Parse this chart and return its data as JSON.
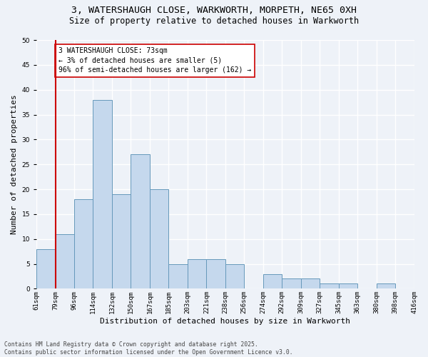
{
  "title_line1": "3, WATERSHAUGH CLOSE, WARKWORTH, MORPETH, NE65 0XH",
  "title_line2": "Size of property relative to detached houses in Warkworth",
  "xlabel": "Distribution of detached houses by size in Warkworth",
  "ylabel": "Number of detached properties",
  "bar_values": [
    8,
    11,
    18,
    38,
    19,
    27,
    20,
    5,
    6,
    6,
    5,
    0,
    3,
    2,
    2,
    1,
    1,
    0,
    1,
    0
  ],
  "bin_labels": [
    "61sqm",
    "79sqm",
    "96sqm",
    "114sqm",
    "132sqm",
    "150sqm",
    "167sqm",
    "185sqm",
    "203sqm",
    "221sqm",
    "238sqm",
    "256sqm",
    "274sqm",
    "292sqm",
    "309sqm",
    "327sqm",
    "345sqm",
    "363sqm",
    "380sqm",
    "398sqm",
    "416sqm"
  ],
  "bar_color": "#c5d8ed",
  "bar_edge_color": "#6699bb",
  "vline_color": "#cc0000",
  "annotation_text": "3 WATERSHAUGH CLOSE: 73sqm\n← 3% of detached houses are smaller (5)\n96% of semi-detached houses are larger (162) →",
  "annotation_box_color": "white",
  "annotation_box_edge_color": "#cc0000",
  "ylim": [
    0,
    50
  ],
  "yticks": [
    0,
    5,
    10,
    15,
    20,
    25,
    30,
    35,
    40,
    45,
    50
  ],
  "footer_text": "Contains HM Land Registry data © Crown copyright and database right 2025.\nContains public sector information licensed under the Open Government Licence v3.0.",
  "bg_color": "#eef2f8",
  "grid_color": "#ffffff",
  "title_fontsize": 9.5,
  "subtitle_fontsize": 8.5,
  "axis_label_fontsize": 8,
  "tick_fontsize": 6.5,
  "annotation_fontsize": 7,
  "footer_fontsize": 5.8
}
